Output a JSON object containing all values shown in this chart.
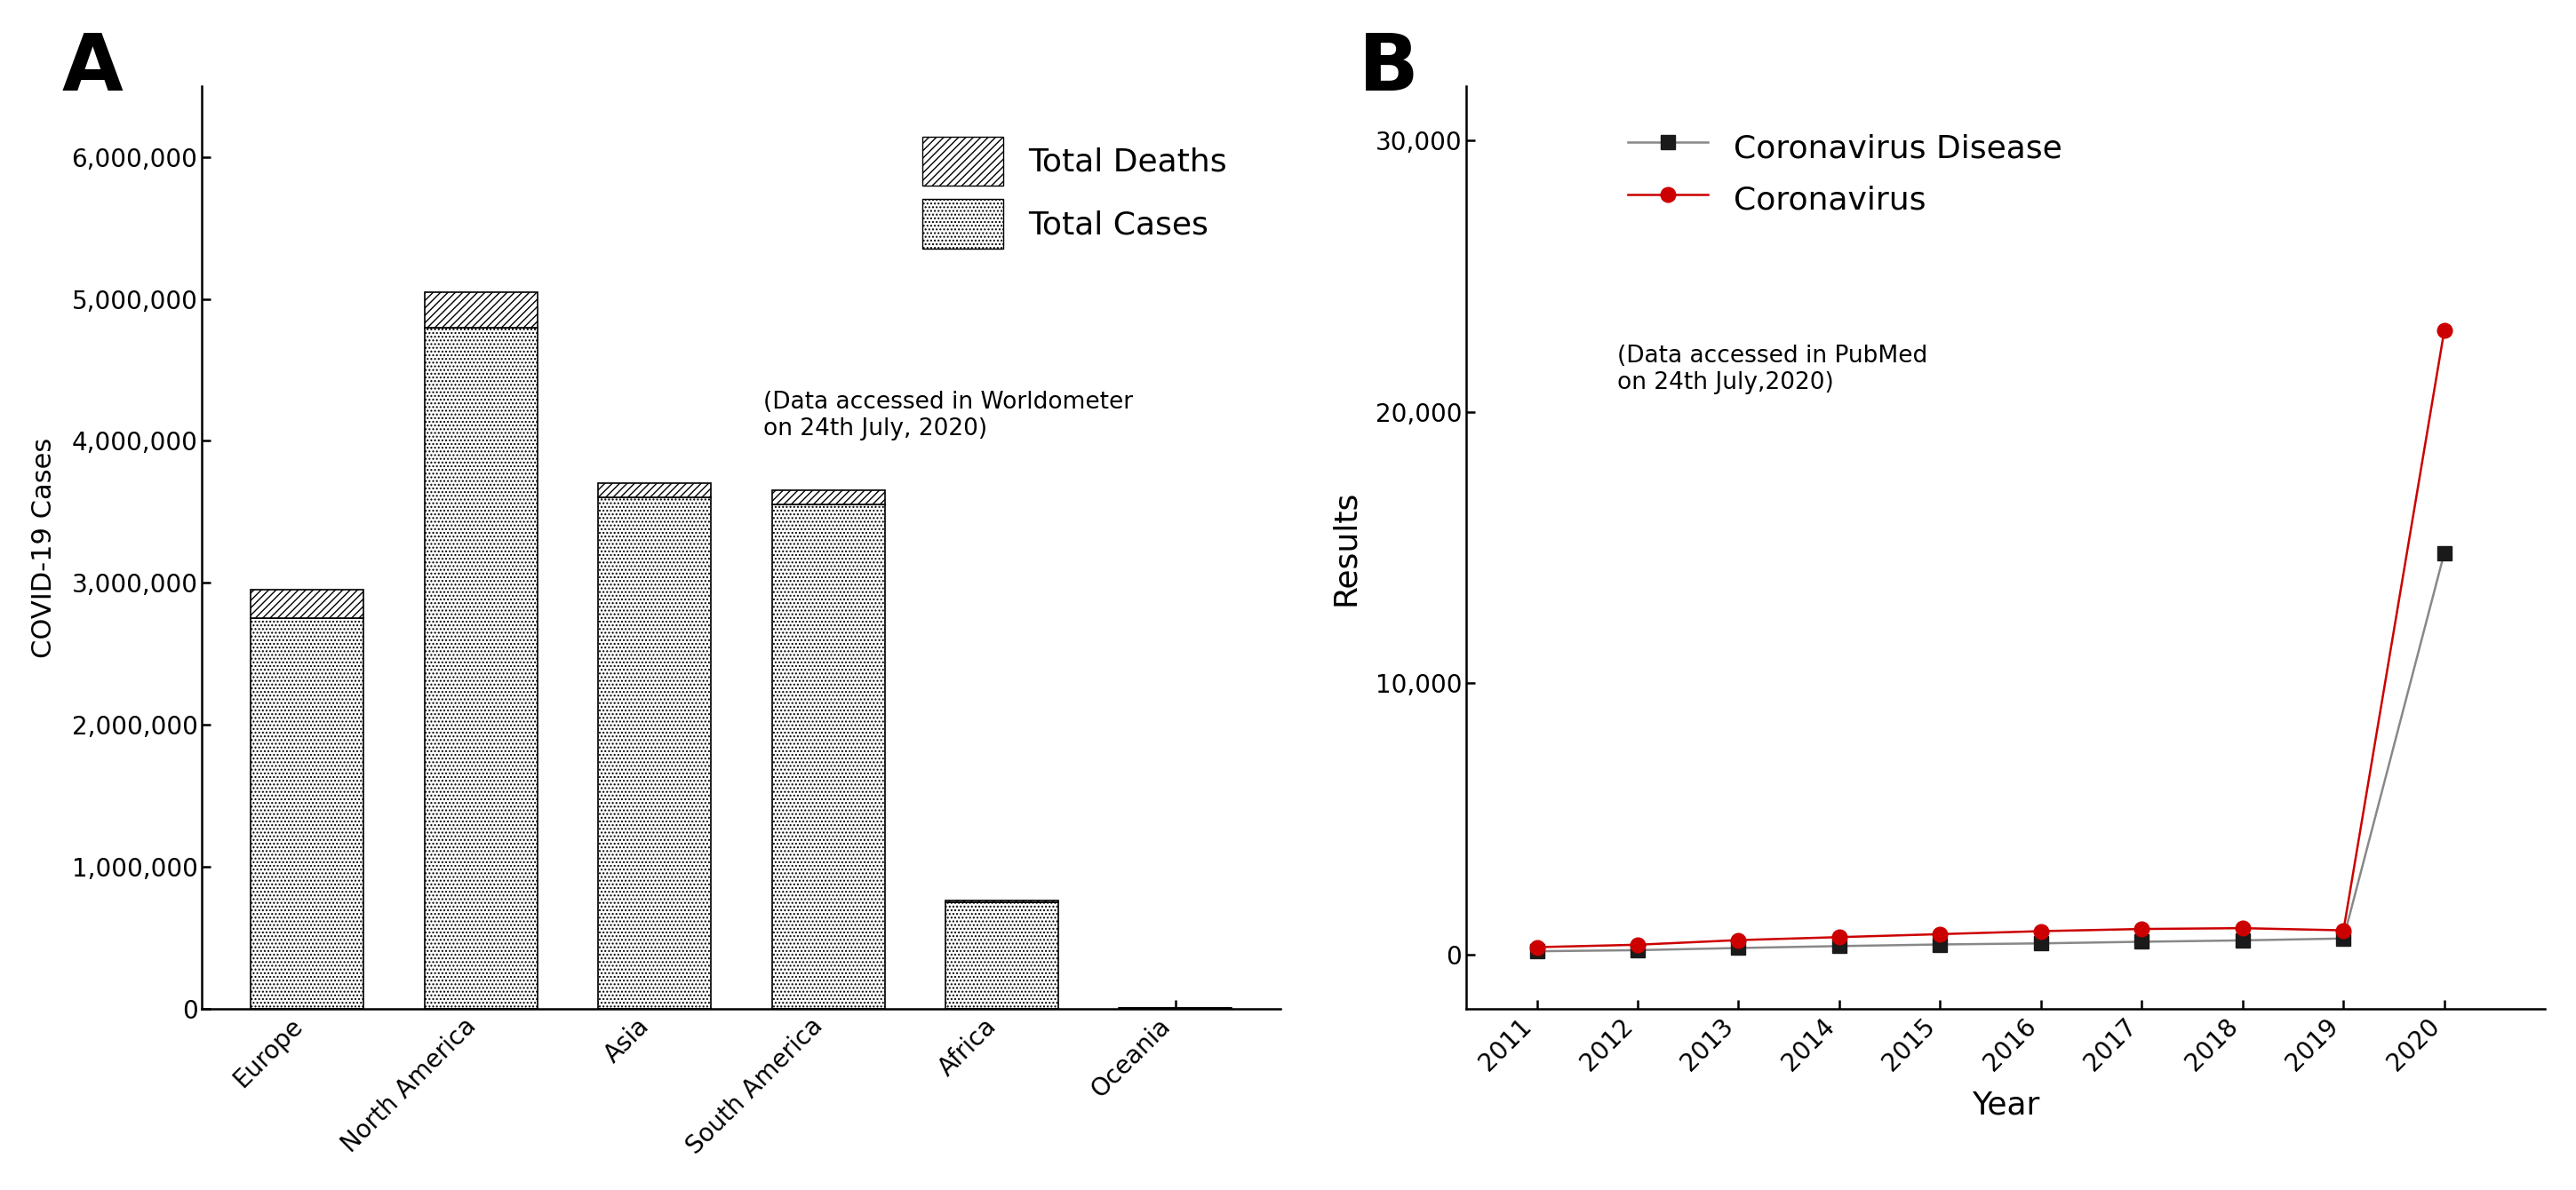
{
  "bar_categories": [
    "Europe",
    "North America",
    "Asia",
    "South America",
    "Africa",
    "Oceania"
  ],
  "total_cases": [
    2750000,
    4800000,
    3600000,
    3550000,
    750000,
    10000
  ],
  "total_deaths": [
    200000,
    250000,
    100000,
    100000,
    15000,
    500
  ],
  "bar_ylabel": "COVID-19 Cases",
  "bar_annotation": "(Data accessed in Worldometer\non 24th July, 2020)",
  "bar_ylim": [
    0,
    6500000
  ],
  "bar_yticks": [
    0,
    1000000,
    2000000,
    3000000,
    4000000,
    5000000,
    6000000
  ],
  "bar_ytick_labels": [
    "0",
    "1,000,000",
    "2,000,000",
    "3,000,000",
    "4,000,000",
    "5,000,000",
    "6,000,000"
  ],
  "panel_A_label": "A",
  "panel_B_label": "B",
  "line_years": [
    2011,
    2012,
    2013,
    2014,
    2015,
    2016,
    2017,
    2018,
    2019,
    2020
  ],
  "coronavirus_disease": [
    130,
    170,
    250,
    320,
    380,
    420,
    480,
    530,
    600,
    14800
  ],
  "coronavirus": [
    280,
    370,
    540,
    650,
    760,
    870,
    950,
    980,
    900,
    23000
  ],
  "line_ylabel": "Results",
  "line_xlabel": "Year",
  "line_ylim": [
    -2000,
    32000
  ],
  "line_yticks": [
    0,
    10000,
    20000,
    30000
  ],
  "line_ytick_labels": [
    "0",
    "10,000",
    "20,000",
    "30,000"
  ],
  "line_annotation": "(Data accessed in PubMed\non 24th July,2020)",
  "corona_disease_color": "#1a1a1a",
  "corona_color": "#cc0000",
  "line_color_disease": "#888888",
  "line_color_corona": "#cc0000",
  "background_color": "#ffffff",
  "hatch_cases": "....",
  "hatch_deaths": "////"
}
